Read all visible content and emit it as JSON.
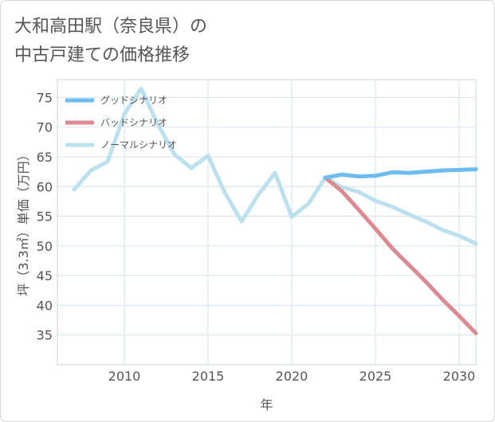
{
  "title": {
    "line1": "大和高田駅（奈良県）の",
    "line2": "中古戸建ての価格推移"
  },
  "colors": {
    "good": "#6cbcf0",
    "bad": "#dc8a91",
    "normal": "#bde0ee",
    "grid": "#d4e3ee",
    "axis": "#555555"
  },
  "chart_data": {
    "type": "line",
    "title": "大和高田駅（奈良県）の中古戸建ての価格推移",
    "xlabel": "年",
    "ylabel": "坪（3.3㎡）単価（万円）",
    "xlim": [
      2006,
      2031
    ],
    "ylim": [
      30,
      78
    ],
    "x_ticks": [
      2010,
      2015,
      2020,
      2025,
      2030
    ],
    "y_ticks": [
      35,
      40,
      45,
      50,
      55,
      60,
      65,
      70,
      75
    ],
    "legend_position": "top-left",
    "series": [
      {
        "name": "グッドシナリオ",
        "key": "good",
        "x": [
          2022,
          2023,
          2024,
          2025,
          2026,
          2027,
          2028,
          2029,
          2030,
          2031
        ],
        "values": [
          61.5,
          62.0,
          61.7,
          61.8,
          62.4,
          62.3,
          62.5,
          62.7,
          62.8,
          62.9
        ]
      },
      {
        "name": "バッドシナリオ",
        "key": "bad",
        "x": [
          2022,
          2023,
          2024,
          2025,
          2026,
          2027,
          2028,
          2029,
          2030,
          2031
        ],
        "values": [
          61.5,
          59.2,
          56.1,
          52.9,
          49.6,
          46.8,
          44.0,
          41.0,
          38.2,
          35.3
        ]
      },
      {
        "name": "ノーマルシナリオ",
        "key": "normal",
        "x": [
          2007,
          2008,
          2009,
          2010,
          2011,
          2012,
          2013,
          2014,
          2015,
          2016,
          2017,
          2018,
          2019,
          2020,
          2021,
          2022,
          2023,
          2024,
          2025,
          2026,
          2027,
          2028,
          2029,
          2030,
          2031
        ],
        "values": [
          59.5,
          62.7,
          64.2,
          72.2,
          76.5,
          70.5,
          65.4,
          63.1,
          65.2,
          59.0,
          54.1,
          58.6,
          62.3,
          54.9,
          57.1,
          61.5,
          59.9,
          59.1,
          57.6,
          56.6,
          55.3,
          54.1,
          52.7,
          51.7,
          50.4
        ]
      }
    ]
  }
}
